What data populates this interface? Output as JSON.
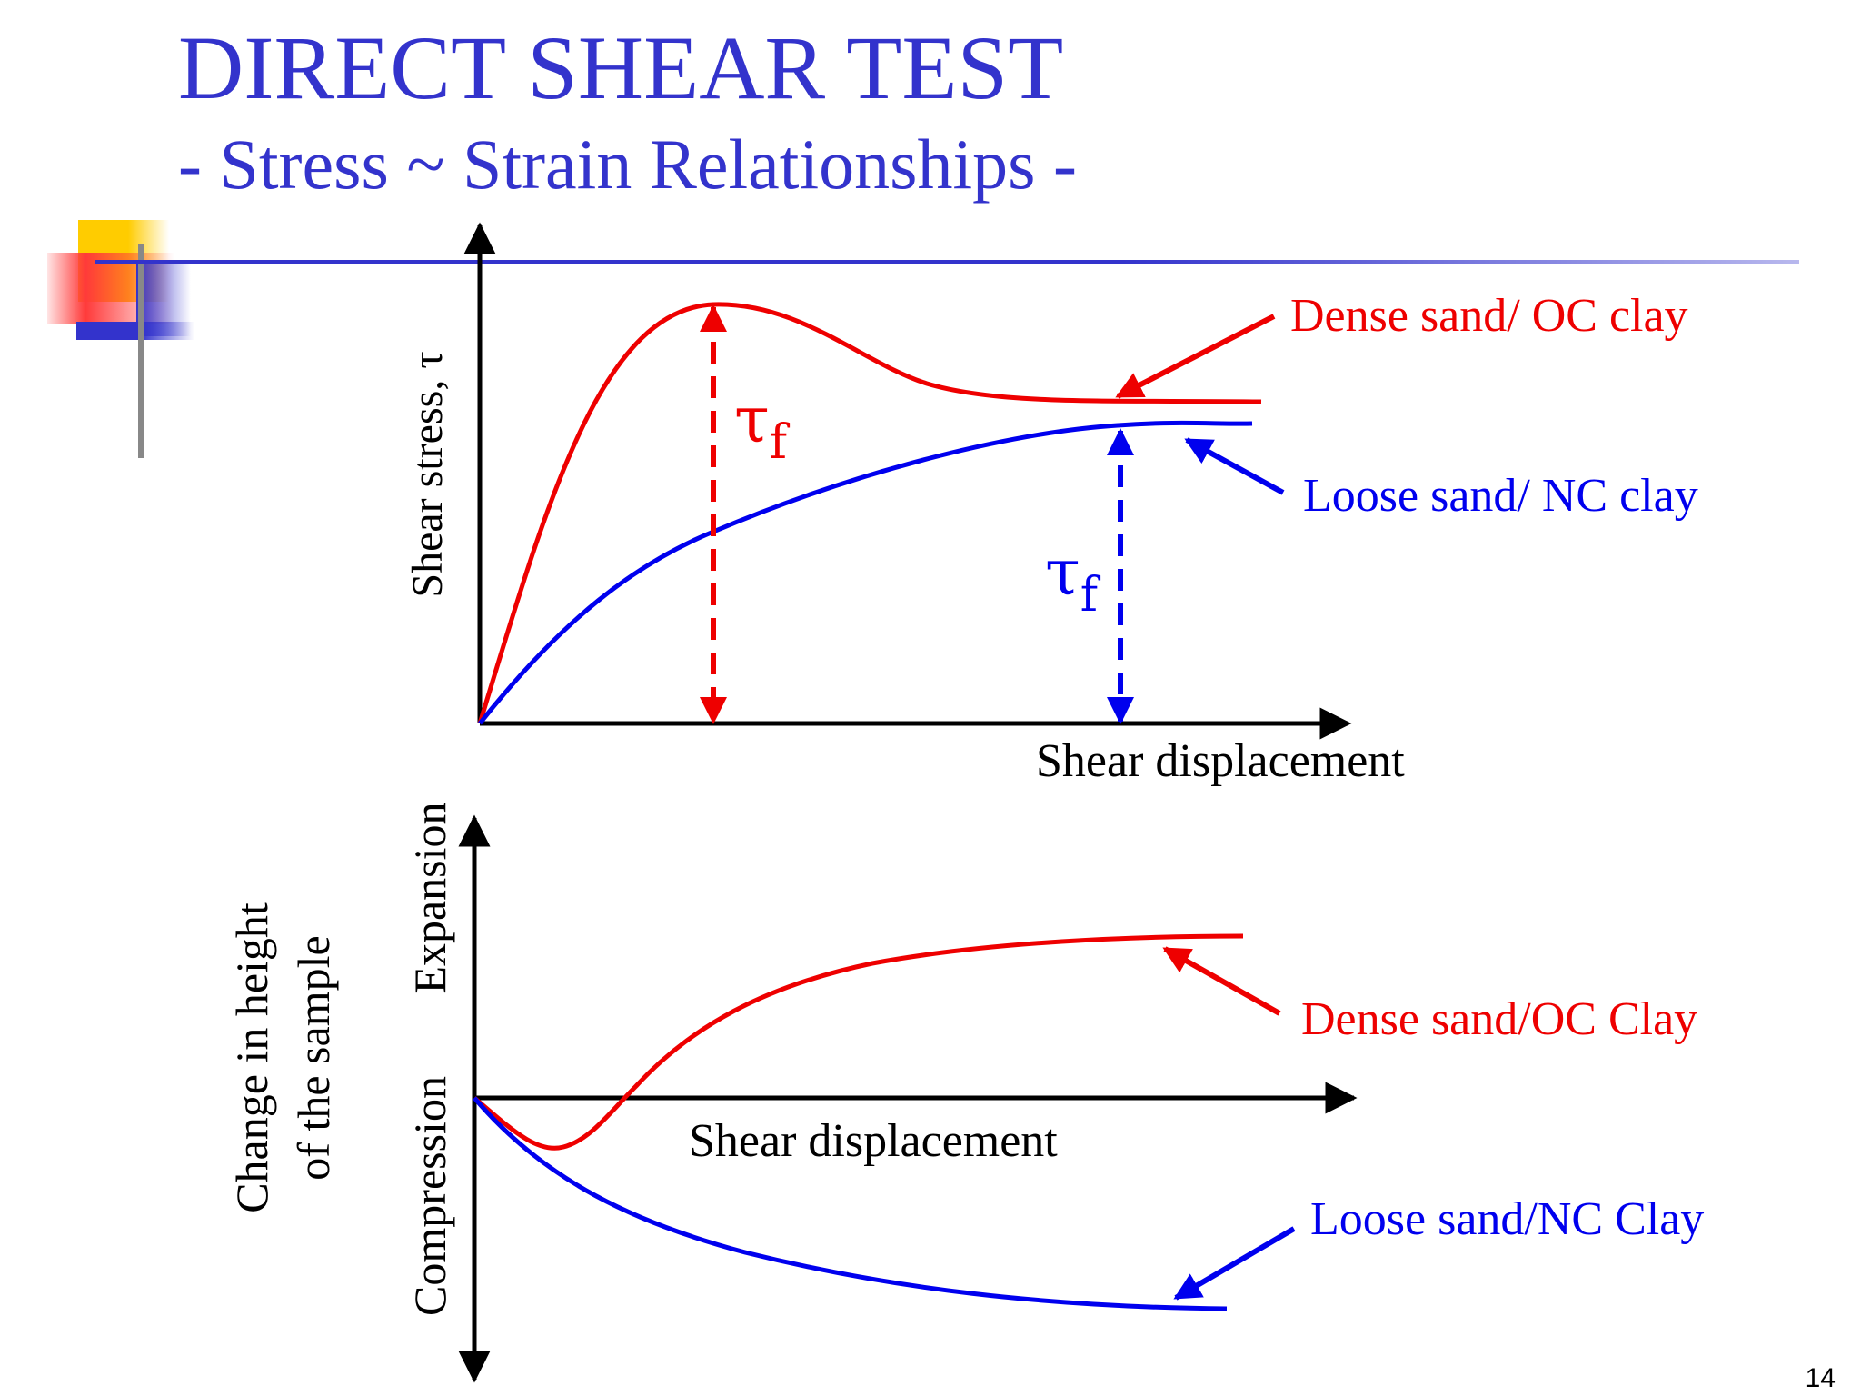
{
  "slide": {
    "title": "DIRECT SHEAR TEST",
    "subtitle": "- Stress ~ Strain Relationships -",
    "page_number": "14"
  },
  "colors": {
    "title": "#3333cc",
    "dense": "#ee0000",
    "loose": "#0000ee",
    "deco_yellow": "#ffcc00",
    "deco_red": "#ff3333",
    "deco_blue": "#3333cc"
  },
  "top_chart": {
    "ylabel": "Shear stress, τ",
    "xlabel": "Shear displacement",
    "tau_f": "τ",
    "tau_f_sub": "f",
    "dense_label": "Dense sand/ OC clay",
    "loose_label": "Loose sand/ NC clay"
  },
  "bottom_chart": {
    "ylabel_line1": "Change in height",
    "ylabel_line2": "of the sample",
    "expansion": "Expansion",
    "compression": "Compression",
    "xlabel": "Shear displacement",
    "dense_label": "Dense sand/OC Clay",
    "loose_label": "Loose sand/NC Clay"
  }
}
